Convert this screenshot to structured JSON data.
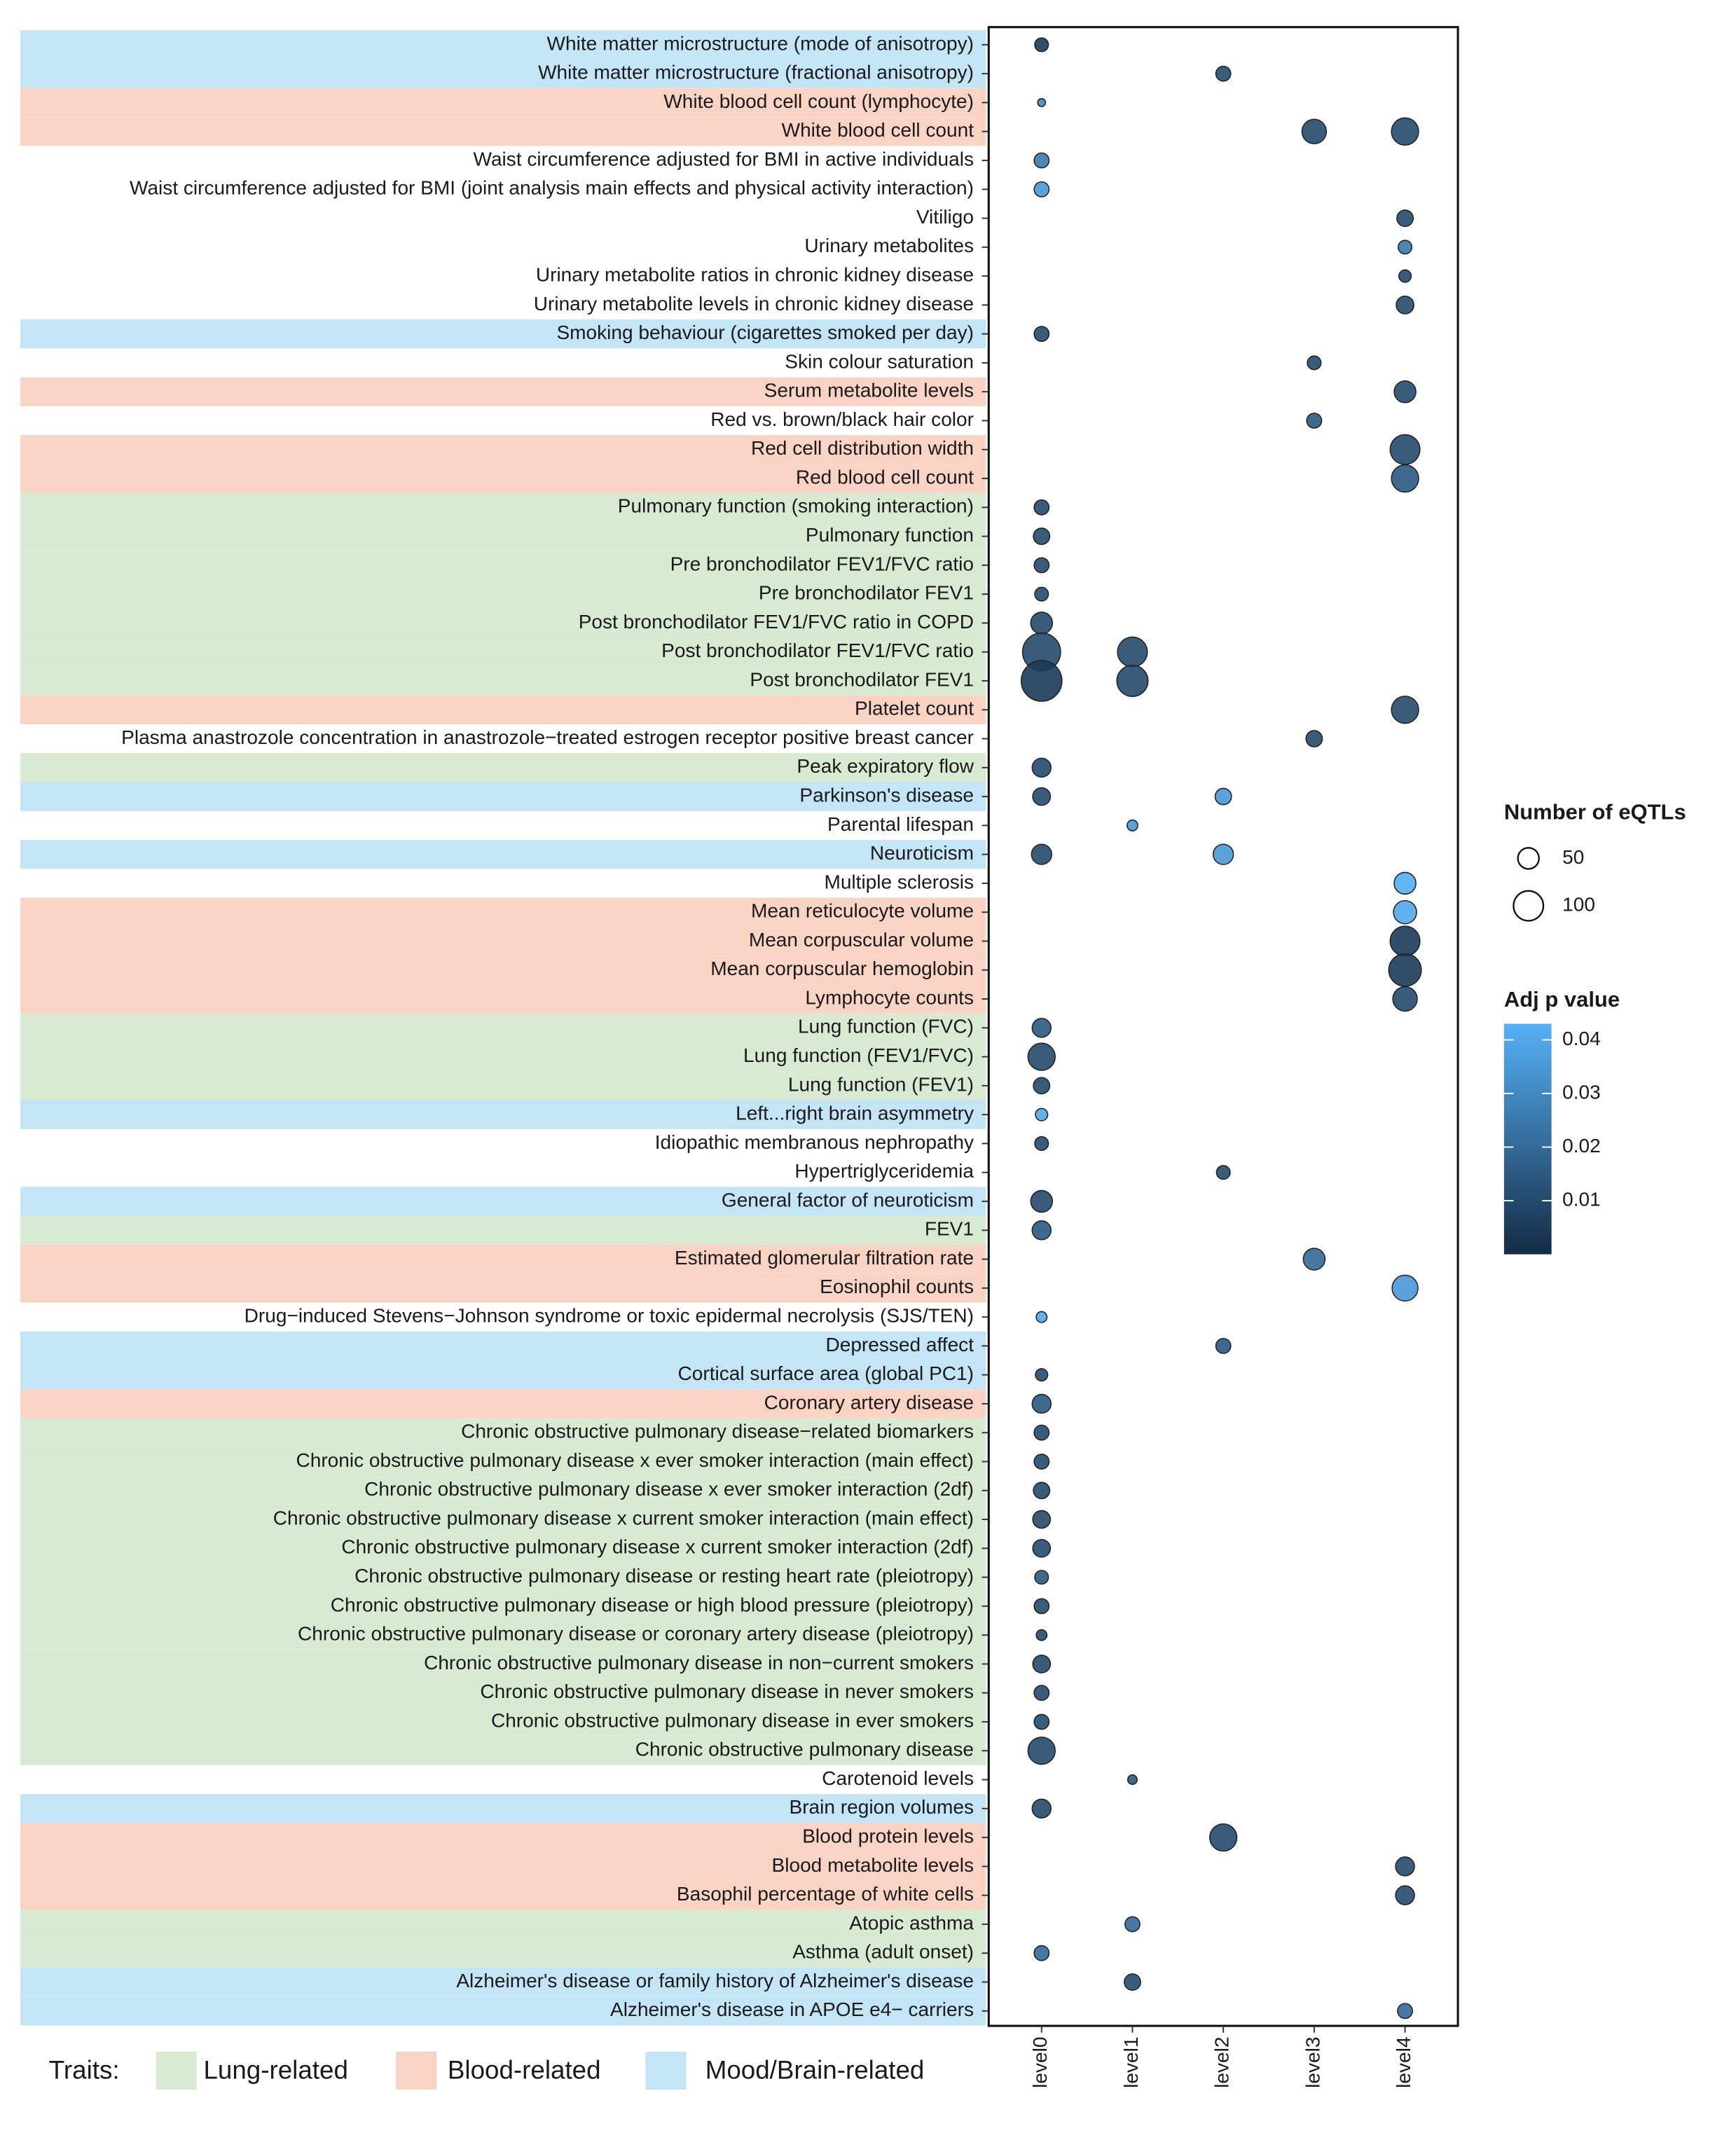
{
  "chart_data": {
    "type": "dot_matrix",
    "x_categories": [
      "level0",
      "level1",
      "level2",
      "level3",
      "level4"
    ],
    "groups_title": "Traits:",
    "groups": [
      {
        "name": "Lung-related",
        "color": "#d9ead3"
      },
      {
        "name": "Blood-related",
        "color": "#f9d3c3"
      },
      {
        "name": "Mood/Brain-related",
        "color": "#c4e5f6"
      }
    ],
    "size_title": "Number of eQTLs",
    "size_breaks": [
      50,
      100
    ],
    "color_title": "Adj p value",
    "p_lim": [
      0,
      0.043
    ],
    "p_ticks": [
      0.01,
      0.02,
      0.03,
      0.04
    ],
    "low_color": "#132B43",
    "high_color": "#56B1F7",
    "rows": [
      {
        "label": "White matter microstructure (mode of anisotropy)",
        "group": "Mood/Brain-related",
        "points": [
          {
            "x": "level0",
            "eqtls": 21,
            "p": 0.005
          }
        ]
      },
      {
        "label": "White matter microstructure (fractional anisotropy)",
        "group": "Mood/Brain-related",
        "points": [
          {
            "x": "level2",
            "eqtls": 25,
            "p": 0.01
          }
        ]
      },
      {
        "label": "White blood cell count (lymphocyte)",
        "group": "Blood-related",
        "points": [
          {
            "x": "level0",
            "eqtls": 7,
            "p": 0.03
          }
        ]
      },
      {
        "label": "White blood cell count",
        "group": "Blood-related",
        "points": [
          {
            "x": "level3",
            "eqtls": 67,
            "p": 0.01
          },
          {
            "x": "level4",
            "eqtls": 83,
            "p": 0.01
          }
        ]
      },
      {
        "label": "Waist circumference adjusted for BMI in active individuals",
        "group": null,
        "points": [
          {
            "x": "level0",
            "eqtls": 25,
            "p": 0.025
          }
        ]
      },
      {
        "label": "Waist circumference adjusted for BMI (joint analysis main effects and physical activity interaction)",
        "group": null,
        "points": [
          {
            "x": "level0",
            "eqtls": 25,
            "p": 0.035
          }
        ]
      },
      {
        "label": "Vitiligo",
        "group": null,
        "points": [
          {
            "x": "level4",
            "eqtls": 30,
            "p": 0.01
          }
        ]
      },
      {
        "label": "Urinary metabolites",
        "group": null,
        "points": [
          {
            "x": "level4",
            "eqtls": 21,
            "p": 0.025
          }
        ]
      },
      {
        "label": "Urinary metabolite ratios in chronic kidney disease",
        "group": null,
        "points": [
          {
            "x": "level4",
            "eqtls": 17,
            "p": 0.01
          }
        ]
      },
      {
        "label": "Urinary metabolite levels in chronic kidney disease",
        "group": null,
        "points": [
          {
            "x": "level4",
            "eqtls": 35,
            "p": 0.01
          }
        ]
      },
      {
        "label": "Smoking behaviour (cigarettes smoked per day)",
        "group": "Mood/Brain-related",
        "points": [
          {
            "x": "level0",
            "eqtls": 25,
            "p": 0.01
          }
        ]
      },
      {
        "label": "Skin colour saturation",
        "group": null,
        "points": [
          {
            "x": "level3",
            "eqtls": 21,
            "p": 0.01
          }
        ]
      },
      {
        "label": "Serum metabolite levels",
        "group": "Blood-related",
        "points": [
          {
            "x": "level4",
            "eqtls": 53,
            "p": 0.01
          }
        ]
      },
      {
        "label": "Red vs. brown/black hair color",
        "group": null,
        "points": [
          {
            "x": "level3",
            "eqtls": 25,
            "p": 0.015
          }
        ]
      },
      {
        "label": "Red cell distribution width",
        "group": "Blood-related",
        "points": [
          {
            "x": "level4",
            "eqtls": 100,
            "p": 0.01
          }
        ]
      },
      {
        "label": "Red blood cell count",
        "group": "Blood-related",
        "points": [
          {
            "x": "level4",
            "eqtls": 83,
            "p": 0.015
          }
        ]
      },
      {
        "label": "Pulmonary function (smoking interaction)",
        "group": "Lung-related",
        "points": [
          {
            "x": "level0",
            "eqtls": 25,
            "p": 0.01
          }
        ]
      },
      {
        "label": "Pulmonary function",
        "group": "Lung-related",
        "points": [
          {
            "x": "level0",
            "eqtls": 30,
            "p": 0.01
          }
        ]
      },
      {
        "label": "Pre bronchodilator FEV1/FVC ratio",
        "group": "Lung-related",
        "points": [
          {
            "x": "level0",
            "eqtls": 25,
            "p": 0.01
          }
        ]
      },
      {
        "label": "Pre bronchodilator FEV1",
        "group": "Lung-related",
        "points": [
          {
            "x": "level0",
            "eqtls": 21,
            "p": 0.01
          }
        ]
      },
      {
        "label": "Post bronchodilator FEV1/FVC ratio in COPD",
        "group": "Lung-related",
        "points": [
          {
            "x": "level0",
            "eqtls": 53,
            "p": 0.01
          }
        ]
      },
      {
        "label": "Post bronchodilator FEV1/FVC ratio",
        "group": "Lung-related",
        "points": [
          {
            "x": "level0",
            "eqtls": 162,
            "p": 0.01
          },
          {
            "x": "level1",
            "eqtls": 100,
            "p": 0.01
          }
        ]
      },
      {
        "label": "Post bronchodilator FEV1",
        "group": "Lung-related",
        "points": [
          {
            "x": "level0",
            "eqtls": 186,
            "p": 0.005
          },
          {
            "x": "level1",
            "eqtls": 109,
            "p": 0.01
          }
        ]
      },
      {
        "label": "Platelet count",
        "group": "Blood-related",
        "points": [
          {
            "x": "level4",
            "eqtls": 83,
            "p": 0.01
          }
        ]
      },
      {
        "label": "Plasma anastrozole concentration in anastrozole−treated estrogen receptor positive breast cancer",
        "group": null,
        "points": [
          {
            "x": "level3",
            "eqtls": 30,
            "p": 0.01
          }
        ]
      },
      {
        "label": "Peak expiratory flow",
        "group": "Lung-related",
        "points": [
          {
            "x": "level0",
            "eqtls": 40,
            "p": 0.01
          }
        ]
      },
      {
        "label": "Parkinson's disease",
        "group": "Mood/Brain-related",
        "points": [
          {
            "x": "level0",
            "eqtls": 35,
            "p": 0.01
          },
          {
            "x": "level2",
            "eqtls": 30,
            "p": 0.035
          }
        ]
      },
      {
        "label": "Parental lifespan",
        "group": null,
        "points": [
          {
            "x": "level1",
            "eqtls": 13,
            "p": 0.035
          }
        ]
      },
      {
        "label": "Neuroticism",
        "group": "Mood/Brain-related",
        "points": [
          {
            "x": "level0",
            "eqtls": 46,
            "p": 0.01
          },
          {
            "x": "level2",
            "eqtls": 46,
            "p": 0.035
          }
        ]
      },
      {
        "label": "Multiple sclerosis",
        "group": null,
        "points": [
          {
            "x": "level4",
            "eqtls": 53,
            "p": 0.042
          }
        ]
      },
      {
        "label": "Mean reticulocyte volume",
        "group": "Blood-related",
        "points": [
          {
            "x": "level4",
            "eqtls": 60,
            "p": 0.04
          }
        ]
      },
      {
        "label": "Mean corpuscular volume",
        "group": "Blood-related",
        "points": [
          {
            "x": "level4",
            "eqtls": 100,
            "p": 0.005
          }
        ]
      },
      {
        "label": "Mean corpuscular hemoglobin",
        "group": "Blood-related",
        "points": [
          {
            "x": "level4",
            "eqtls": 119,
            "p": 0.005
          }
        ]
      },
      {
        "label": "Lymphocyte counts",
        "group": "Blood-related",
        "points": [
          {
            "x": "level4",
            "eqtls": 67,
            "p": 0.01
          }
        ]
      },
      {
        "label": "Lung function (FVC)",
        "group": "Lung-related",
        "points": [
          {
            "x": "level0",
            "eqtls": 40,
            "p": 0.015
          }
        ]
      },
      {
        "label": "Lung function (FEV1/FVC)",
        "group": "Lung-related",
        "points": [
          {
            "x": "level0",
            "eqtls": 83,
            "p": 0.01
          }
        ]
      },
      {
        "label": "Lung function (FEV1)",
        "group": "Lung-related",
        "points": [
          {
            "x": "level0",
            "eqtls": 30,
            "p": 0.01
          }
        ]
      },
      {
        "label": "Left...right brain asymmetry",
        "group": "Mood/Brain-related",
        "points": [
          {
            "x": "level0",
            "eqtls": 17,
            "p": 0.04
          }
        ]
      },
      {
        "label": "Idiopathic membranous nephropathy",
        "group": null,
        "points": [
          {
            "x": "level0",
            "eqtls": 21,
            "p": 0.01
          }
        ]
      },
      {
        "label": "Hypertriglyceridemia",
        "group": null,
        "points": [
          {
            "x": "level2",
            "eqtls": 21,
            "p": 0.01
          }
        ]
      },
      {
        "label": "General factor of neuroticism",
        "group": "Mood/Brain-related",
        "points": [
          {
            "x": "level0",
            "eqtls": 53,
            "p": 0.01
          }
        ]
      },
      {
        "label": "FEV1",
        "group": "Lung-related",
        "points": [
          {
            "x": "level0",
            "eqtls": 40,
            "p": 0.015
          }
        ]
      },
      {
        "label": "Estimated glomerular filtration rate",
        "group": "Blood-related",
        "points": [
          {
            "x": "level3",
            "eqtls": 53,
            "p": 0.02
          }
        ]
      },
      {
        "label": "Eosinophil counts",
        "group": "Blood-related",
        "points": [
          {
            "x": "level4",
            "eqtls": 75,
            "p": 0.035
          }
        ]
      },
      {
        "label": "Drug−induced Stevens−Johnson syndrome or toxic epidermal necrolysis (SJS/TEN)",
        "group": null,
        "points": [
          {
            "x": "level0",
            "eqtls": 13,
            "p": 0.04
          }
        ]
      },
      {
        "label": "Depressed affect",
        "group": "Mood/Brain-related",
        "points": [
          {
            "x": "level2",
            "eqtls": 25,
            "p": 0.015
          }
        ]
      },
      {
        "label": "Cortical surface area (global PC1)",
        "group": "Mood/Brain-related",
        "points": [
          {
            "x": "level0",
            "eqtls": 17,
            "p": 0.01
          }
        ]
      },
      {
        "label": "Coronary artery disease",
        "group": "Blood-related",
        "points": [
          {
            "x": "level0",
            "eqtls": 40,
            "p": 0.015
          }
        ]
      },
      {
        "label": "Chronic obstructive pulmonary disease−related biomarkers",
        "group": "Lung-related",
        "points": [
          {
            "x": "level0",
            "eqtls": 25,
            "p": 0.01
          }
        ]
      },
      {
        "label": "Chronic obstructive pulmonary disease x ever smoker interaction (main effect)",
        "group": "Lung-related",
        "points": [
          {
            "x": "level0",
            "eqtls": 25,
            "p": 0.01
          }
        ]
      },
      {
        "label": "Chronic obstructive pulmonary disease x ever smoker interaction (2df)",
        "group": "Lung-related",
        "points": [
          {
            "x": "level0",
            "eqtls": 30,
            "p": 0.01
          }
        ]
      },
      {
        "label": "Chronic obstructive pulmonary disease x current smoker interaction (main effect)",
        "group": "Lung-related",
        "points": [
          {
            "x": "level0",
            "eqtls": 35,
            "p": 0.01
          }
        ]
      },
      {
        "label": "Chronic obstructive pulmonary disease x current smoker interaction (2df)",
        "group": "Lung-related",
        "points": [
          {
            "x": "level0",
            "eqtls": 35,
            "p": 0.01
          }
        ]
      },
      {
        "label": "Chronic obstructive pulmonary disease or resting heart rate (pleiotropy)",
        "group": "Lung-related",
        "points": [
          {
            "x": "level0",
            "eqtls": 21,
            "p": 0.015
          }
        ]
      },
      {
        "label": "Chronic obstructive pulmonary disease or high blood pressure (pleiotropy)",
        "group": "Lung-related",
        "points": [
          {
            "x": "level0",
            "eqtls": 25,
            "p": 0.01
          }
        ]
      },
      {
        "label": "Chronic obstructive pulmonary disease or coronary artery disease (pleiotropy)",
        "group": "Lung-related",
        "points": [
          {
            "x": "level0",
            "eqtls": 13,
            "p": 0.01
          }
        ]
      },
      {
        "label": "Chronic obstructive pulmonary disease in non−current smokers",
        "group": "Lung-related",
        "points": [
          {
            "x": "level0",
            "eqtls": 35,
            "p": 0.01
          }
        ]
      },
      {
        "label": "Chronic obstructive pulmonary disease in never smokers",
        "group": "Lung-related",
        "points": [
          {
            "x": "level0",
            "eqtls": 25,
            "p": 0.01
          }
        ]
      },
      {
        "label": "Chronic obstructive pulmonary disease in ever smokers",
        "group": "Lung-related",
        "points": [
          {
            "x": "level0",
            "eqtls": 25,
            "p": 0.01
          }
        ]
      },
      {
        "label": "Chronic obstructive pulmonary disease",
        "group": "Lung-related",
        "points": [
          {
            "x": "level0",
            "eqtls": 83,
            "p": 0.01
          }
        ]
      },
      {
        "label": "Carotenoid levels",
        "group": null,
        "points": [
          {
            "x": "level1",
            "eqtls": 10,
            "p": 0.015
          }
        ]
      },
      {
        "label": "Brain region volumes",
        "group": "Mood/Brain-related",
        "points": [
          {
            "x": "level0",
            "eqtls": 40,
            "p": 0.01
          }
        ]
      },
      {
        "label": "Blood protein levels",
        "group": "Blood-related",
        "points": [
          {
            "x": "level2",
            "eqtls": 83,
            "p": 0.01
          }
        ]
      },
      {
        "label": "Blood metabolite levels",
        "group": "Blood-related",
        "points": [
          {
            "x": "level4",
            "eqtls": 40,
            "p": 0.01
          }
        ]
      },
      {
        "label": "Basophil percentage of white cells",
        "group": "Blood-related",
        "points": [
          {
            "x": "level4",
            "eqtls": 40,
            "p": 0.01
          }
        ]
      },
      {
        "label": "Atopic asthma",
        "group": "Lung-related",
        "points": [
          {
            "x": "level1",
            "eqtls": 25,
            "p": 0.02
          }
        ]
      },
      {
        "label": "Asthma (adult onset)",
        "group": "Lung-related",
        "points": [
          {
            "x": "level0",
            "eqtls": 25,
            "p": 0.02
          }
        ]
      },
      {
        "label": "Alzheimer's disease or family history of Alzheimer's disease",
        "group": "Mood/Brain-related",
        "points": [
          {
            "x": "level1",
            "eqtls": 30,
            "p": 0.01
          }
        ]
      },
      {
        "label": "Alzheimer's disease in APOE e4− carriers",
        "group": "Mood/Brain-related",
        "points": [
          {
            "x": "level4",
            "eqtls": 25,
            "p": 0.02
          }
        ]
      }
    ]
  }
}
